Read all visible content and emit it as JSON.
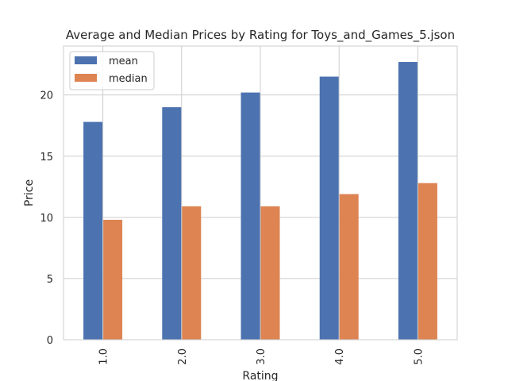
{
  "chart_data": {
    "type": "bar",
    "title": "Average and Median Prices by Rating for Toys_and_Games_5.json",
    "xlabel": "Rating",
    "ylabel": "Price",
    "categories": [
      "1.0",
      "2.0",
      "3.0",
      "4.0",
      "5.0"
    ],
    "series": [
      {
        "name": "mean",
        "values": [
          17.8,
          19.0,
          20.2,
          21.5,
          22.7
        ],
        "color": "#4c72b0"
      },
      {
        "name": "median",
        "values": [
          9.8,
          10.9,
          10.9,
          11.9,
          12.8
        ],
        "color": "#dd8452"
      }
    ],
    "ylim": [
      0,
      24.0
    ],
    "yticks": [
      0,
      5,
      10,
      15,
      20
    ],
    "grid": true,
    "legend": "top-left"
  }
}
